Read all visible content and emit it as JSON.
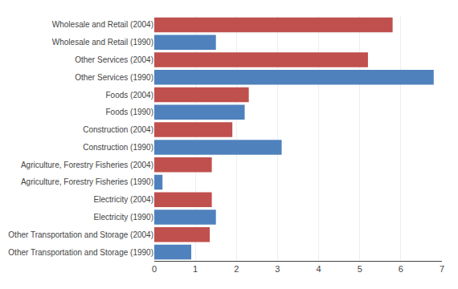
{
  "chart_data": {
    "type": "bar",
    "orientation": "horizontal",
    "categories": [
      "Wholesale and Retail (2004)",
      "Wholesale and Retail (1990)",
      "Other Services (2004)",
      "Other Services (1990)",
      "Foods (2004)",
      "Foods (1990)",
      "Construction (2004)",
      "Construction (1990)",
      "Agriculture, Forestry Fisheries (2004)",
      "Agriculture, Forestry Fisheries (1990)",
      "Electricity (2004)",
      "Electricity (1990)",
      "Other Transportation and Storage (2004)",
      "Other Transportation and Storage (1990)"
    ],
    "values": [
      5.8,
      1.5,
      5.2,
      6.8,
      2.3,
      2.2,
      1.9,
      3.1,
      1.4,
      0.2,
      1.4,
      1.5,
      1.35,
      0.9
    ],
    "colors": [
      "#C0504D",
      "#4F81BD",
      "#C0504D",
      "#4F81BD",
      "#C0504D",
      "#4F81BD",
      "#C0504D",
      "#4F81BD",
      "#C0504D",
      "#4F81BD",
      "#C0504D",
      "#4F81BD",
      "#C0504D",
      "#4F81BD"
    ],
    "xlim": [
      0,
      7
    ],
    "xticks": [
      0,
      1,
      2,
      3,
      4,
      5,
      6,
      7
    ],
    "grid": true
  }
}
